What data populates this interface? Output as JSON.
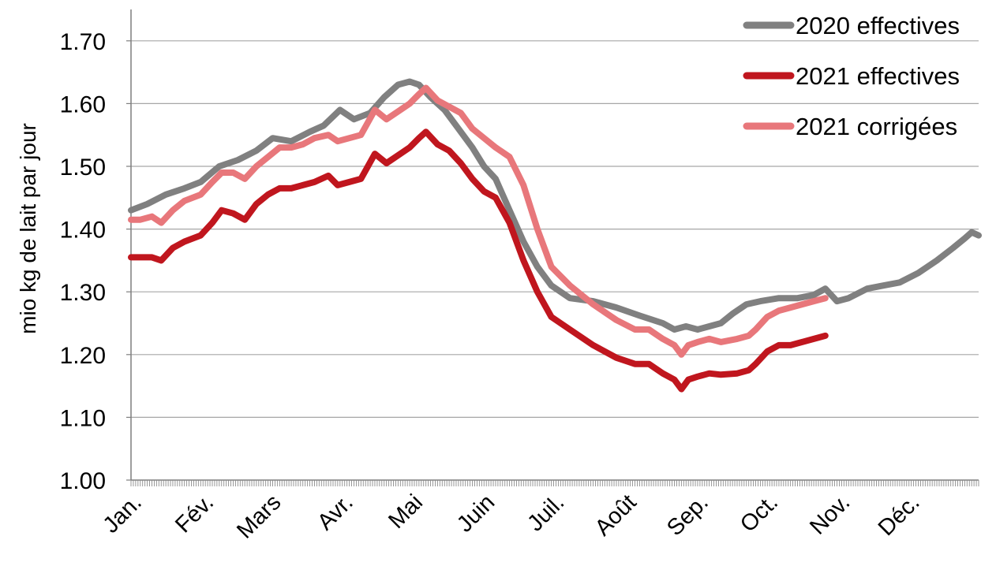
{
  "chart_data": {
    "type": "line",
    "title": "",
    "ylabel": "mio kg de lait par jour",
    "xlabel": "",
    "ylim": [
      1.0,
      1.75
    ],
    "yticks": [
      "1.00",
      "1.10",
      "1.20",
      "1.30",
      "1.40",
      "1.50",
      "1.60",
      "1.70"
    ],
    "ytick_values": [
      1.0,
      1.1,
      1.2,
      1.3,
      1.4,
      1.5,
      1.6,
      1.7
    ],
    "grid": true,
    "legend_position": "top-right",
    "x_months": [
      "Jan.",
      "Fév.",
      "Mars",
      "Avr.",
      "Mai",
      "Juin",
      "Juil.",
      "Août",
      "Sep.",
      "Oct.",
      "Nov.",
      "Déc."
    ],
    "x_unit": "day of year (1-366)",
    "series": [
      {
        "name": "2020 effectives",
        "color": "#808080",
        "x": [
          1,
          8,
          16,
          24,
          31,
          39,
          47,
          55,
          62,
          70,
          78,
          84,
          91,
          97,
          104,
          110,
          116,
          121,
          125,
          130,
          136,
          142,
          148,
          153,
          158,
          164,
          170,
          176,
          182,
          190,
          200,
          210,
          220,
          230,
          235,
          240,
          245,
          250,
          255,
          260,
          266,
          272,
          280,
          288,
          295,
          300,
          305,
          310,
          318,
          325,
          332,
          340,
          348,
          355,
          360,
          363,
          366
        ],
        "y": [
          1.43,
          1.44,
          1.455,
          1.465,
          1.475,
          1.5,
          1.51,
          1.525,
          1.545,
          1.54,
          1.555,
          1.565,
          1.59,
          1.575,
          1.585,
          1.61,
          1.63,
          1.635,
          1.63,
          1.61,
          1.59,
          1.56,
          1.53,
          1.5,
          1.48,
          1.43,
          1.38,
          1.34,
          1.31,
          1.29,
          1.285,
          1.275,
          1.262,
          1.25,
          1.24,
          1.245,
          1.24,
          1.245,
          1.25,
          1.265,
          1.28,
          1.285,
          1.29,
          1.29,
          1.295,
          1.305,
          1.285,
          1.29,
          1.305,
          1.31,
          1.315,
          1.33,
          1.35,
          1.37,
          1.385,
          1.395,
          1.39
        ]
      },
      {
        "name": "2021 effectives",
        "color": "#c0161e",
        "x": [
          1,
          5,
          10,
          14,
          19,
          24,
          31,
          36,
          40,
          45,
          50,
          55,
          60,
          65,
          70,
          75,
          80,
          86,
          90,
          95,
          100,
          106,
          111,
          117,
          121,
          125,
          128,
          133,
          138,
          143,
          148,
          153,
          158,
          164,
          170,
          176,
          182,
          190,
          200,
          210,
          218,
          224,
          230,
          235,
          238,
          241,
          245,
          250,
          255,
          262,
          267,
          270,
          275,
          280,
          285,
          290,
          295,
          300
        ],
        "y": [
          1.355,
          1.355,
          1.355,
          1.35,
          1.37,
          1.38,
          1.39,
          1.41,
          1.43,
          1.425,
          1.415,
          1.44,
          1.455,
          1.465,
          1.465,
          1.47,
          1.475,
          1.485,
          1.47,
          1.475,
          1.48,
          1.52,
          1.505,
          1.52,
          1.53,
          1.545,
          1.555,
          1.535,
          1.525,
          1.505,
          1.48,
          1.46,
          1.45,
          1.41,
          1.35,
          1.3,
          1.26,
          1.24,
          1.215,
          1.195,
          1.185,
          1.185,
          1.17,
          1.16,
          1.145,
          1.16,
          1.165,
          1.17,
          1.168,
          1.17,
          1.175,
          1.185,
          1.205,
          1.215,
          1.215,
          1.22,
          1.225,
          1.23
        ]
      },
      {
        "name": "2021 corrigées",
        "color": "#e8777b",
        "x": [
          1,
          5,
          10,
          14,
          19,
          24,
          31,
          36,
          40,
          45,
          50,
          55,
          60,
          65,
          70,
          75,
          80,
          86,
          90,
          95,
          100,
          106,
          111,
          117,
          121,
          125,
          128,
          133,
          138,
          143,
          148,
          153,
          158,
          164,
          170,
          176,
          182,
          190,
          200,
          210,
          218,
          224,
          230,
          235,
          238,
          241,
          245,
          250,
          255,
          262,
          267,
          270,
          275,
          280,
          285,
          290,
          295,
          300
        ],
        "y": [
          1.415,
          1.415,
          1.42,
          1.41,
          1.43,
          1.445,
          1.455,
          1.475,
          1.49,
          1.49,
          1.48,
          1.5,
          1.515,
          1.53,
          1.53,
          1.535,
          1.545,
          1.55,
          1.54,
          1.545,
          1.55,
          1.59,
          1.575,
          1.59,
          1.6,
          1.615,
          1.625,
          1.605,
          1.595,
          1.585,
          1.56,
          1.545,
          1.53,
          1.515,
          1.47,
          1.4,
          1.34,
          1.31,
          1.28,
          1.255,
          1.24,
          1.24,
          1.225,
          1.215,
          1.2,
          1.215,
          1.22,
          1.225,
          1.22,
          1.225,
          1.23,
          1.24,
          1.26,
          1.27,
          1.275,
          1.28,
          1.285,
          1.29
        ]
      }
    ]
  }
}
